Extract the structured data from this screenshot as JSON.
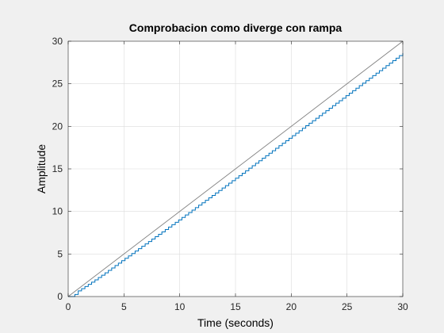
{
  "chart_data": {
    "type": "line",
    "title": "Comprobacion como diverge con rampa",
    "xlabel": "Time (seconds)",
    "ylabel": "Amplitude",
    "xlim": [
      0,
      30
    ],
    "ylim": [
      0,
      30
    ],
    "xticks": [
      0,
      5,
      10,
      15,
      20,
      25,
      30
    ],
    "yticks": [
      0,
      5,
      10,
      15,
      20,
      25,
      30
    ],
    "grid": true,
    "series": [
      {
        "style": "line",
        "color": "#808080",
        "x": [
          0,
          30
        ],
        "y": [
          0,
          30
        ]
      },
      {
        "style": "stairs",
        "color": "#0072bd",
        "x": [
          0,
          0.5,
          0.7,
          1.0,
          1.3,
          2.0,
          3.0,
          5.0,
          10.0,
          15.0,
          20.0,
          25.0,
          30.0
        ],
        "y": [
          0,
          0,
          0.5,
          0.75,
          1.0,
          1.6,
          2.5,
          4.4,
          9.1,
          13.9,
          18.8,
          23.7,
          28.6
        ],
        "step": 0.3
      }
    ]
  }
}
